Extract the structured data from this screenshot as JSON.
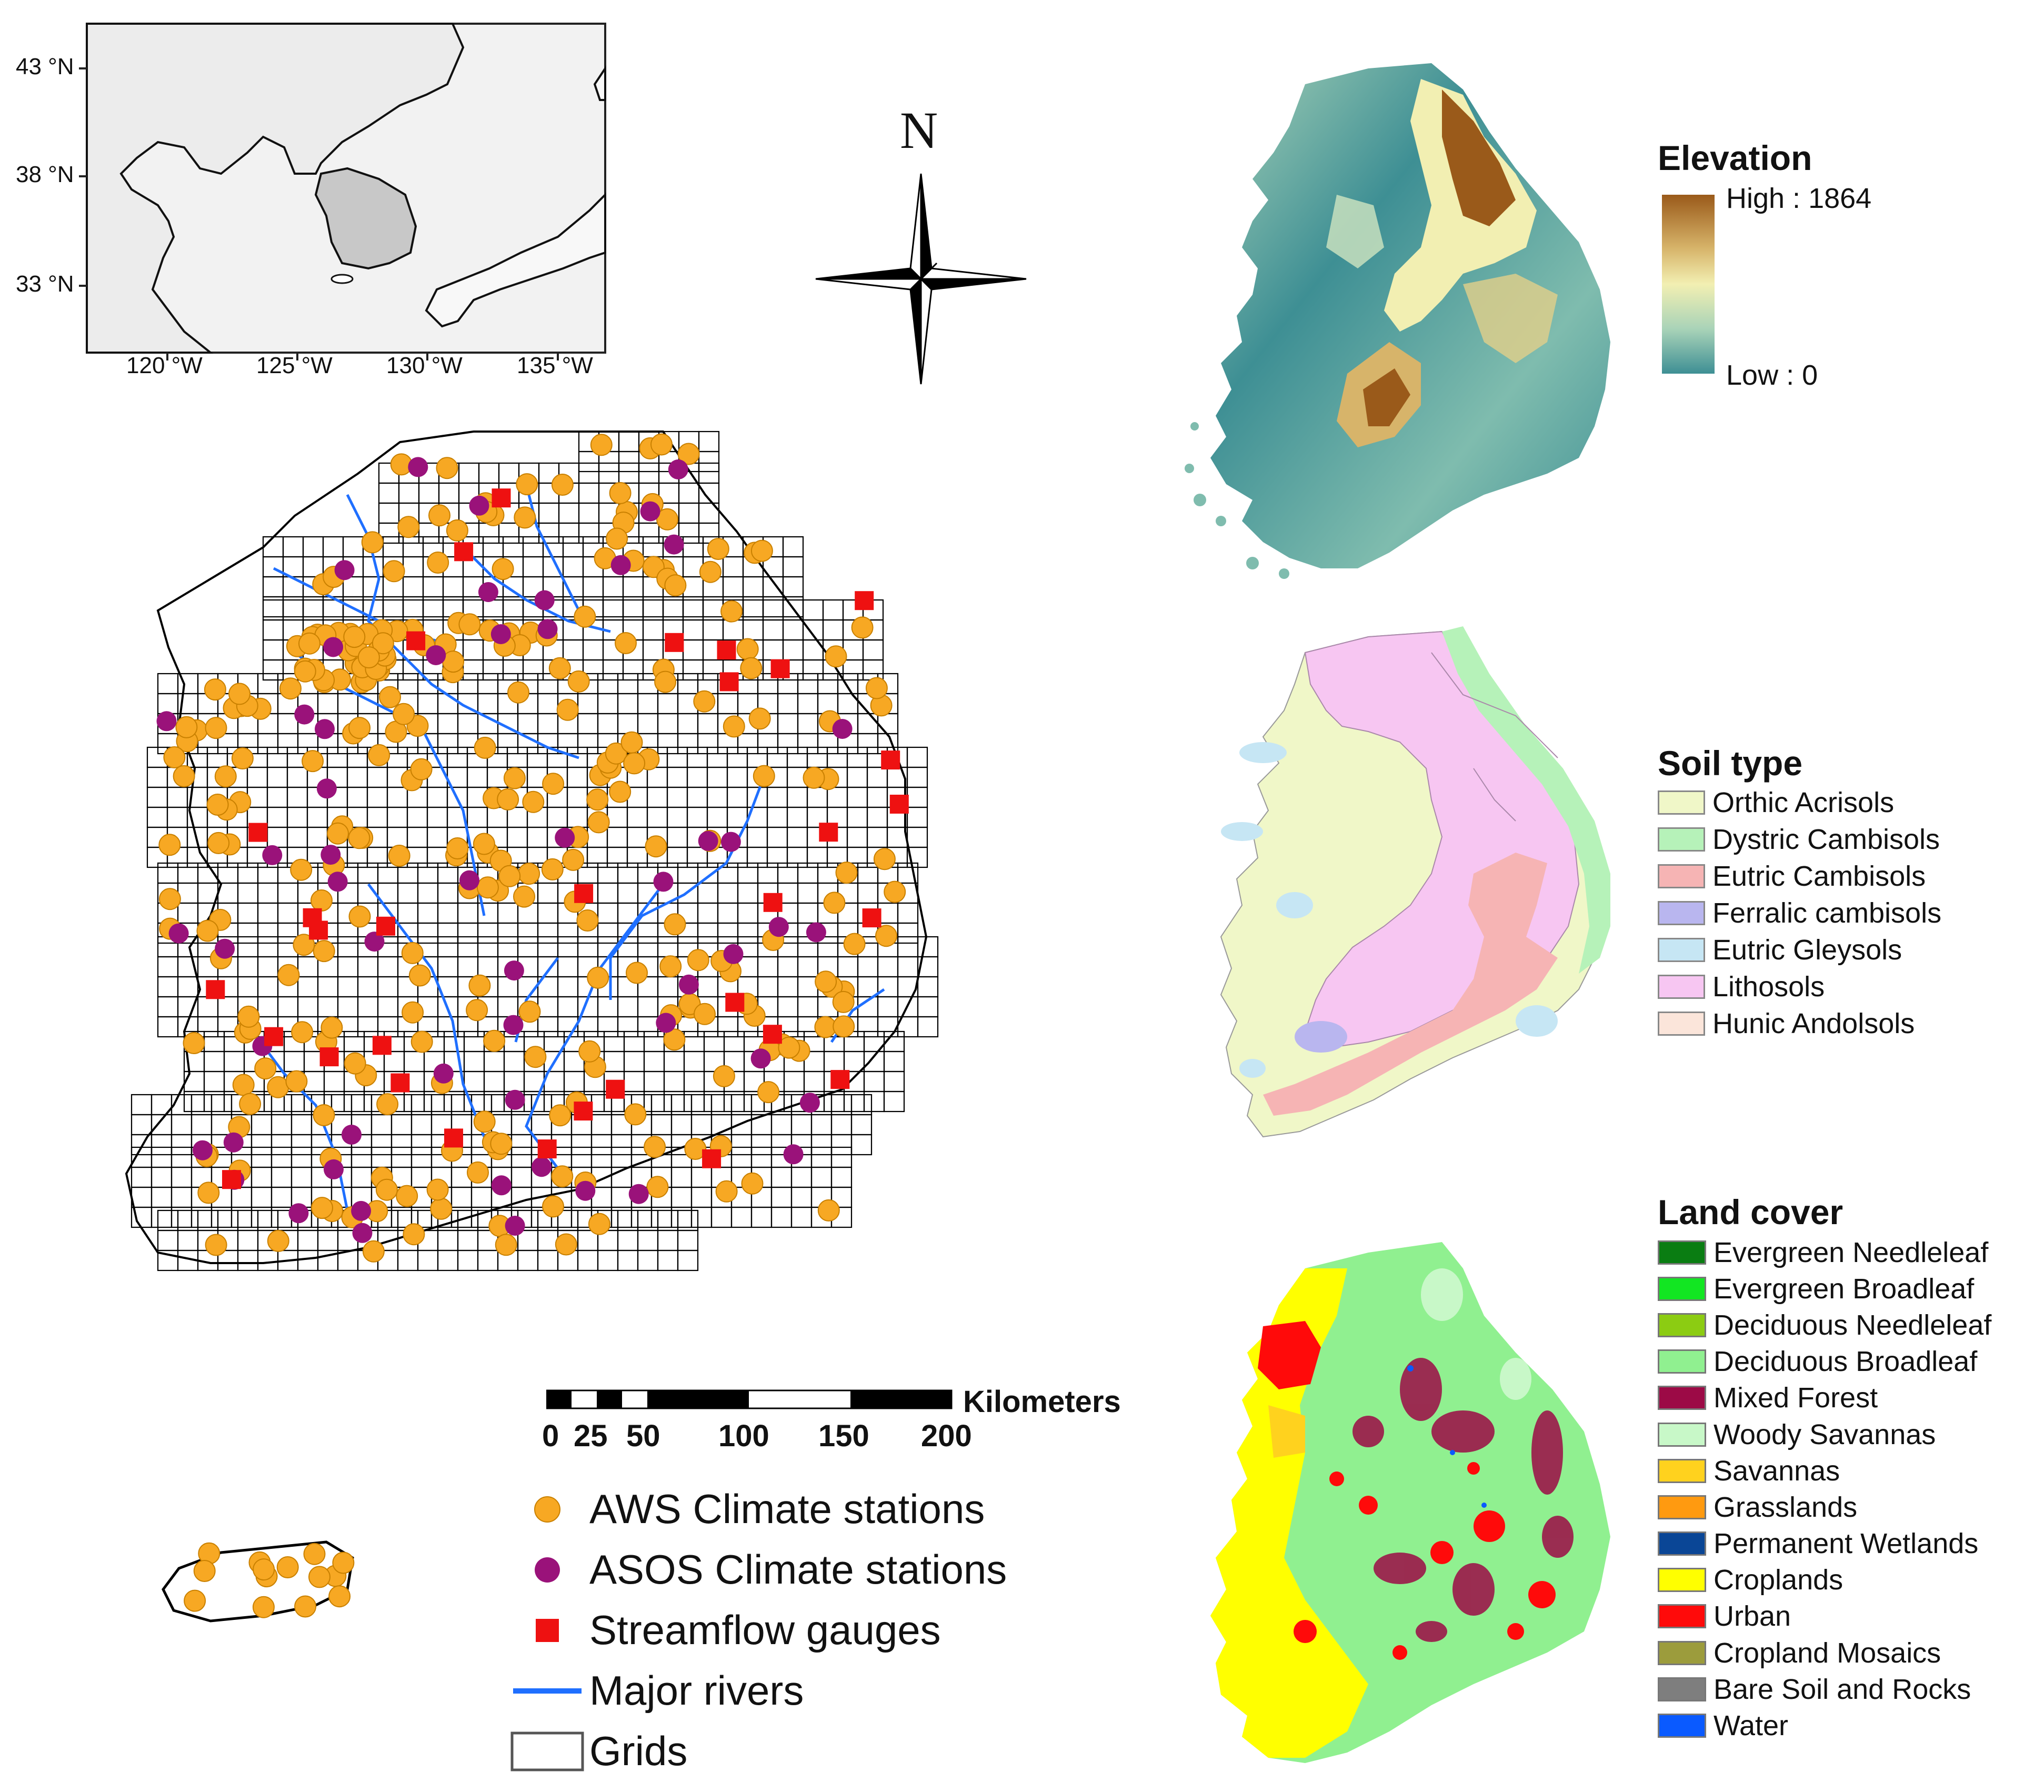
{
  "inset_map": {
    "lat_labels": [
      "43 °N",
      "38 °N",
      "33 °N"
    ],
    "lon_labels": [
      "120 °W",
      "125 °W",
      "130 °W",
      "135 °W"
    ]
  },
  "north_arrow": {
    "label": "N"
  },
  "elevation_legend": {
    "title": "Elevation",
    "high_label": "High : 1864",
    "low_label": "Low : 0",
    "colors": [
      "#9a5a1a",
      "#d7b46a",
      "#f2efb2",
      "#a9d3b8",
      "#3e8f94"
    ]
  },
  "soil_legend": {
    "title": "Soil type",
    "items": [
      {
        "label": "Orthic Acrisols",
        "color": "#f0f7c8"
      },
      {
        "label": "Dystric Cambisols",
        "color": "#b6f2b9"
      },
      {
        "label": "Eutric Cambisols",
        "color": "#f6b4b4"
      },
      {
        "label": "Ferralic cambisols",
        "color": "#b9b6ef"
      },
      {
        "label": "Eutric Gleysols",
        "color": "#c6e6f4"
      },
      {
        "label": "Lithosols",
        "color": "#f7c6f2"
      },
      {
        "label": "Hunic Andolsols",
        "color": "#fbe5da"
      }
    ]
  },
  "landcover_legend": {
    "title": "Land cover",
    "items": [
      {
        "label": "Evergreen Needleleaf",
        "color": "#0a7d12"
      },
      {
        "label": "Evergreen Broadleaf",
        "color": "#12e622"
      },
      {
        "label": "Deciduous Needleleaf",
        "color": "#8ccc12"
      },
      {
        "label": "Deciduous Broadleaf",
        "color": "#90f090"
      },
      {
        "label": "Mixed Forest",
        "color": "#9c0a46"
      },
      {
        "label": "Woody Savannas",
        "color": "#c8f8c8"
      },
      {
        "label": "Savannas",
        "color": "#ffd21e"
      },
      {
        "label": "Grasslands",
        "color": "#ff9a10"
      },
      {
        "label": "Permanent Wetlands",
        "color": "#0a4696"
      },
      {
        "label": "Croplands",
        "color": "#ffff00"
      },
      {
        "label": "Urban",
        "color": "#ff0a0a"
      },
      {
        "label": "Cropland Mosaics",
        "color": "#9c9c3c"
      },
      {
        "label": "Bare Soil and Rocks",
        "color": "#7e7e7e"
      },
      {
        "label": "Water",
        "color": "#0a5aff"
      }
    ]
  },
  "scale_bar": {
    "unit": "Kilometers",
    "ticks": [
      "0",
      "25",
      "50",
      "100",
      "150",
      "200"
    ]
  },
  "main_legend": {
    "aws": {
      "label": "AWS Climate stations",
      "color": "#f7a823"
    },
    "asos": {
      "label": "ASOS Climate stations",
      "color": "#9a127a"
    },
    "gauge": {
      "label": "Streamflow gauges",
      "color": "#ee1111"
    },
    "river": {
      "label": "Major rivers",
      "color": "#1f6fff"
    },
    "grid": {
      "label": "Grids"
    }
  }
}
